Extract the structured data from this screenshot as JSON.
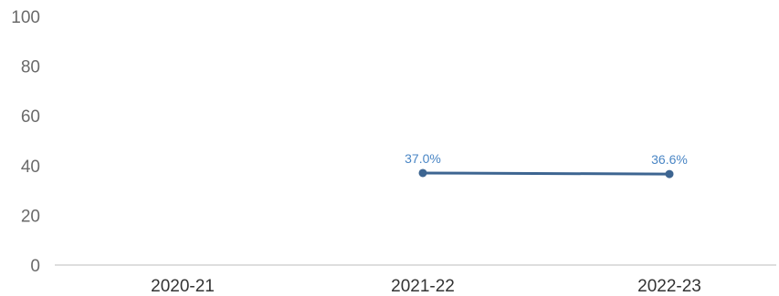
{
  "chart_data": {
    "type": "line",
    "categories": [
      "2020-21",
      "2021-22",
      "2022-23"
    ],
    "series": [
      {
        "values": [
          null,
          37.0,
          36.6
        ],
        "labels": [
          null,
          "37.0%",
          "36.6%"
        ]
      }
    ],
    "ylim": [
      0,
      100
    ],
    "yticks": [
      "0",
      "20",
      "40",
      "60",
      "80",
      "100"
    ],
    "grid": false,
    "colors": {
      "line": "#3d6591",
      "marker": "#3d6591",
      "label": "#4a86c5",
      "axis": "#bdbdbd"
    }
  }
}
